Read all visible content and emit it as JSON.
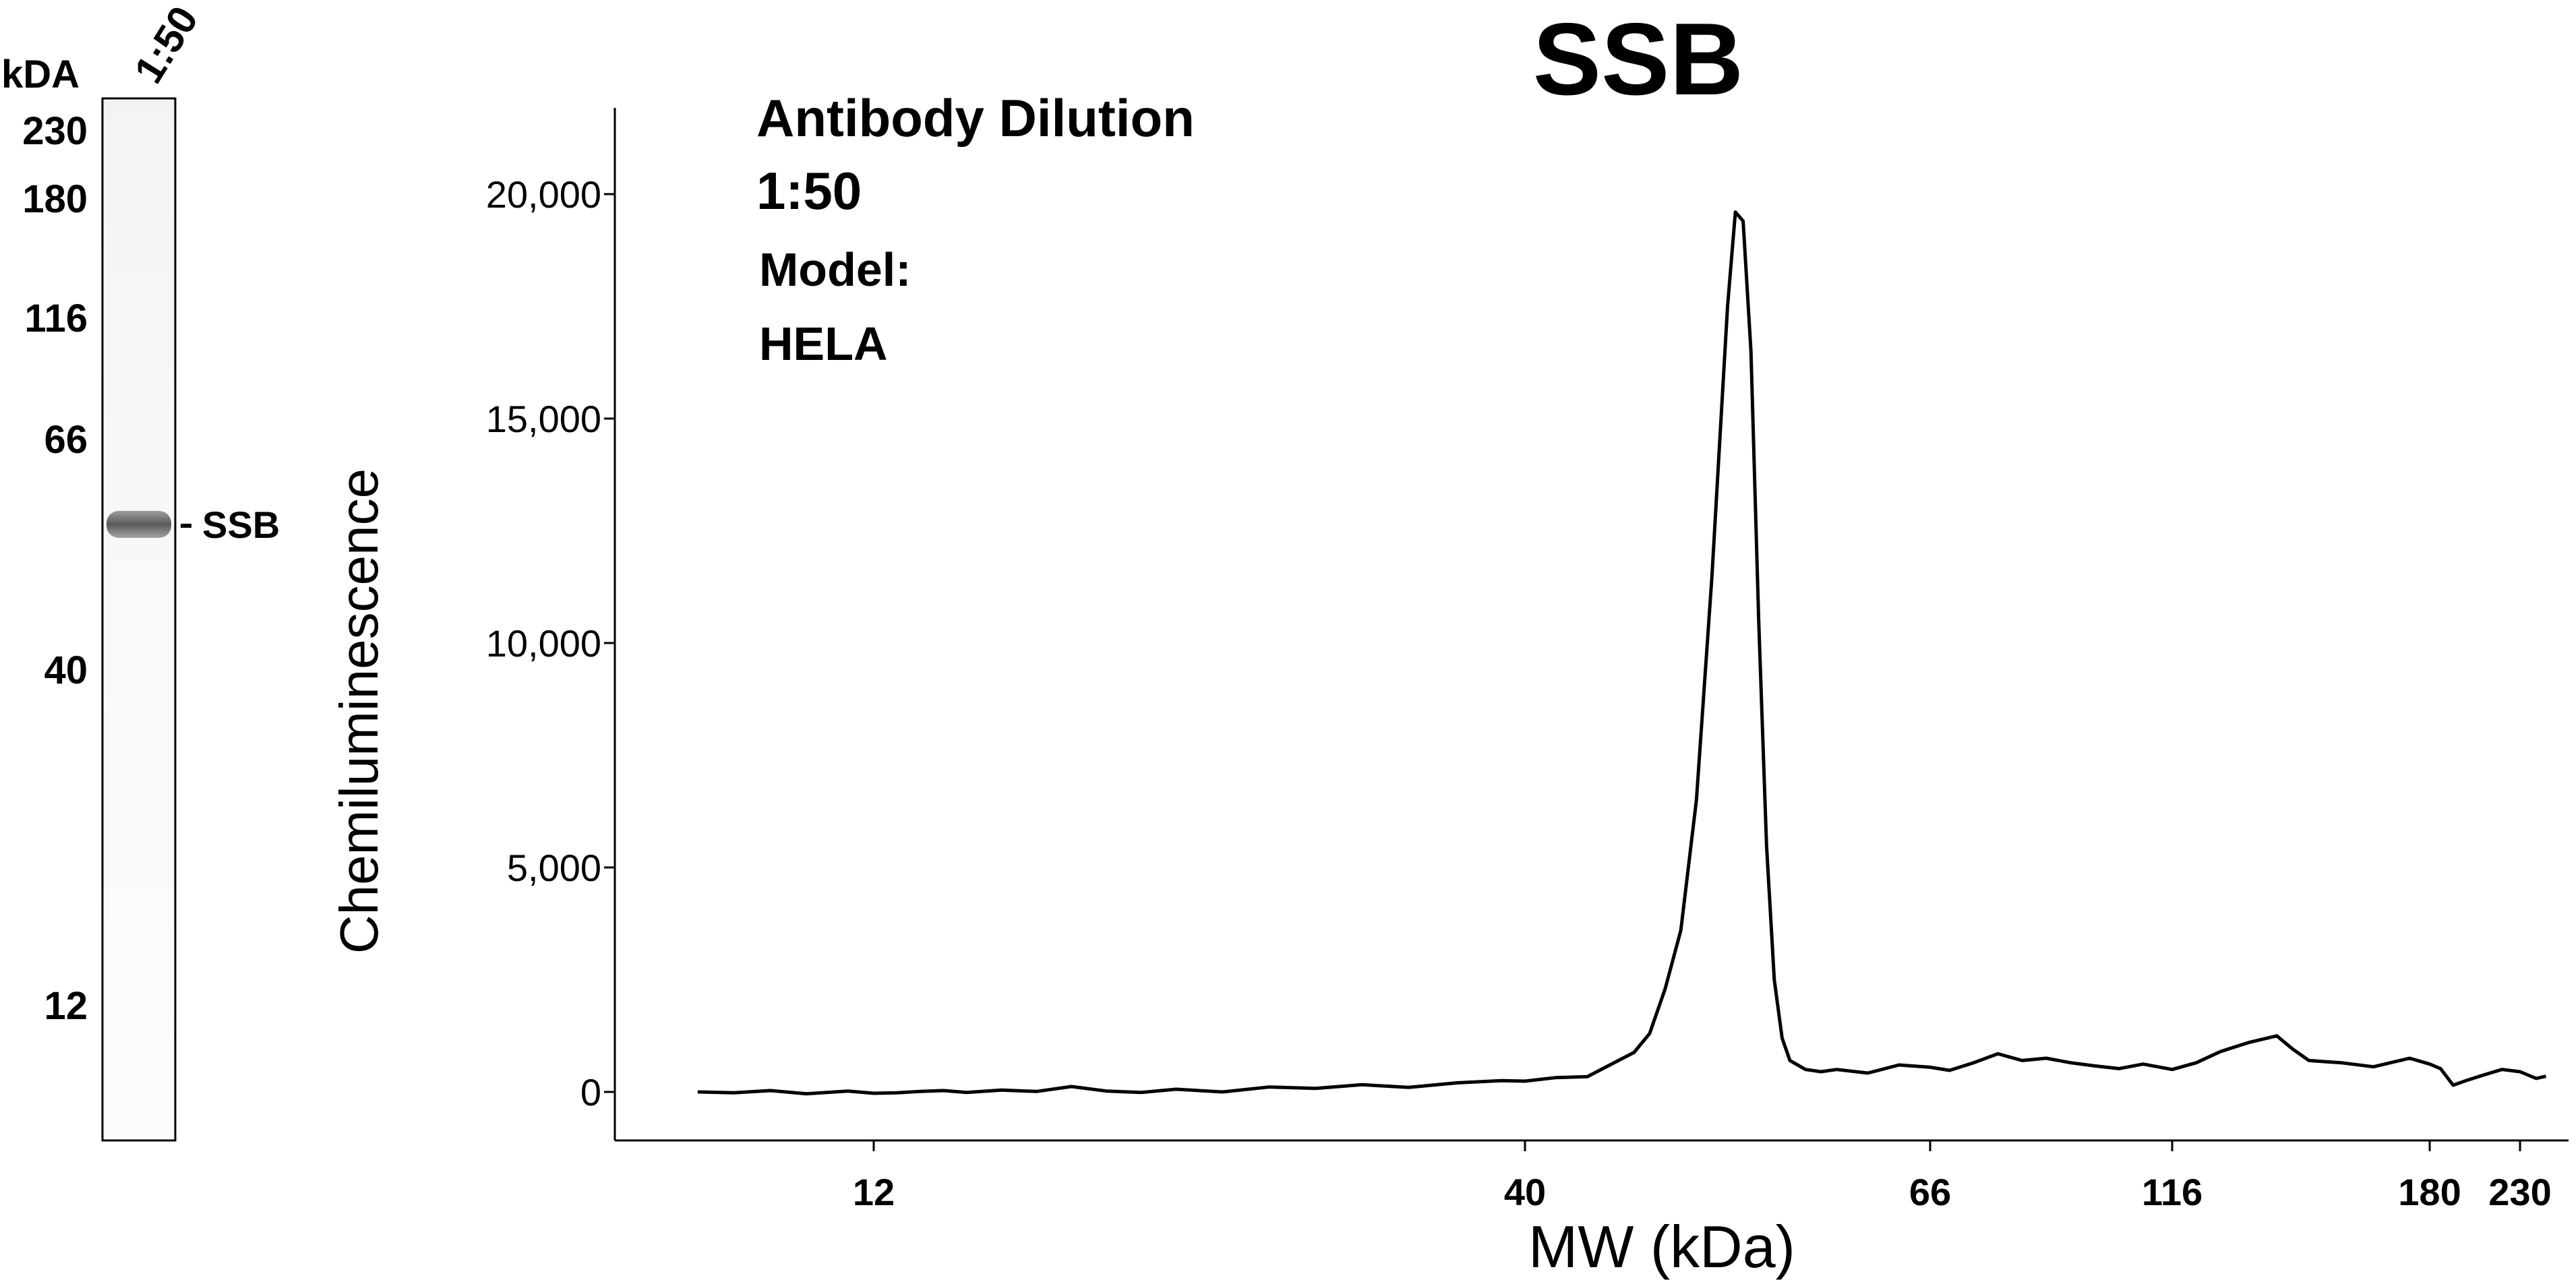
{
  "gel": {
    "unit_label": "kDA",
    "lane_label": "1:50",
    "markers": [
      "230",
      "180",
      "116",
      "66",
      "40",
      "12"
    ],
    "band_label": "SSB"
  },
  "chart_data": {
    "type": "line",
    "title": "SSB",
    "xlabel": "MW (kDa)",
    "ylabel": "Chemiluminescence",
    "ylim": [
      -1000,
      22000
    ],
    "yticks": [
      0,
      5000,
      10000,
      15000,
      20000
    ],
    "ytick_labels": [
      "0",
      "5,000",
      "10,000",
      "15,000",
      "20,000"
    ],
    "xticks": [
      12,
      40,
      66,
      116,
      180,
      230
    ],
    "xtick_labels": [
      "12",
      "40",
      "66",
      "116",
      "180",
      "230"
    ],
    "annotations": [
      "Antibody Dilution",
      "1:50",
      "Model:",
      "HELA"
    ],
    "grid": false,
    "series": [
      {
        "x": [
          8.6,
          9.3,
          10.0,
          10.7,
          11.5,
          12.0,
          13.0,
          14.0,
          15.0,
          16.0,
          17.5,
          19.0,
          20.5,
          22.0,
          23.5,
          25.0,
          27.0,
          29.0,
          31.0,
          33.0,
          35.0,
          37.0,
          39.0,
          40.0,
          42.0,
          44.0,
          46.0,
          47.0,
          48.0,
          49.0,
          50.0,
          51.0,
          52.0,
          52.5,
          53.0,
          53.5,
          54.0,
          54.5,
          55.0,
          55.5,
          56.0,
          56.5,
          57.0,
          58.0,
          59.0,
          60.0,
          62.0,
          64.0,
          66.0,
          70.0,
          75.0,
          80.0,
          85.0,
          90.0,
          95.0,
          100.0,
          105.0,
          110.0,
          116.0,
          122.0,
          128.0,
          135.0,
          142.0,
          146.0,
          150.0,
          158.0,
          166.0,
          175.0,
          180.0,
          186.0,
          193.0,
          200.0,
          210.0,
          220.0,
          230.0,
          240.0,
          246.0
        ],
        "values": [
          0,
          -20,
          30,
          -40,
          20,
          -30,
          -20,
          10,
          30,
          -10,
          40,
          10,
          120,
          20,
          -10,
          60,
          0,
          110,
          80,
          160,
          100,
          200,
          250,
          240,
          320,
          340,
          700,
          880,
          1300,
          2300,
          3600,
          6500,
          11500,
          14500,
          17500,
          19600,
          19400,
          16500,
          10500,
          5500,
          2500,
          1200,
          700,
          500,
          450,
          500,
          420,
          600,
          550,
          480,
          650,
          850,
          700,
          750,
          650,
          580,
          520,
          620,
          500,
          650,
          900,
          1100,
          1250,
          950,
          700,
          650,
          560,
          750,
          620,
          520,
          150,
          250,
          380,
          500,
          450,
          300,
          350
        ]
      }
    ]
  }
}
